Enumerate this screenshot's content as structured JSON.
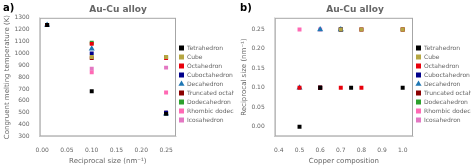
{
  "chart_data": [
    {
      "type": "scatter",
      "title": "Au-Cu alloy",
      "annotations": [
        "a)"
      ],
      "xlabel": "Reciprocal size (nm⁻¹)",
      "ylabel": "Congruent melting temperature (K)",
      "xlim": [
        -0.005,
        0.27
      ],
      "ylim": [
        300,
        1300
      ],
      "xticks": [
        {
          "value": 0.0,
          "label": "0.00"
        },
        0.05,
        {
          "value": 0.1,
          "label": "0.10"
        },
        0.15,
        {
          "value": 0.2,
          "label": "0.20"
        },
        0.25
      ],
      "yticks": [
        300,
        400,
        500,
        600,
        700,
        800,
        900,
        1000,
        1100,
        1200,
        1300
      ],
      "grid": false,
      "legend": "right",
      "series": [
        {
          "name": "Tetrahedron",
          "color": "#000000",
          "marker": "square",
          "x": [
            0.01,
            0.1,
            0.25
          ],
          "y": [
            1240,
            680,
            490
          ]
        },
        {
          "name": "Cube",
          "color": "#b5a642",
          "marker": "square",
          "x": [
            0.1,
            0.25
          ],
          "y": [
            970,
            970
          ]
        },
        {
          "name": "Octahedron",
          "color": "#e8000b",
          "marker": "square",
          "x": [
            0.01,
            0.1,
            0.25
          ],
          "y": [
            1240,
            1080,
            960
          ]
        },
        {
          "name": "Cuboctahedron",
          "color": "#00008B",
          "marker": "square",
          "x": [
            0.1,
            0.25
          ],
          "y": [
            1000,
            500
          ]
        },
        {
          "name": "Decahedron",
          "color": "#1f77b4",
          "marker": "triangle",
          "x": [
            0.01,
            0.1,
            0.25
          ],
          "y": [
            1240,
            1040,
            490
          ]
        },
        {
          "name": "Truncated octahedron",
          "color": "#8B0000",
          "marker": "square",
          "x": [
            0.1,
            0.25
          ],
          "y": [
            960,
            500
          ]
        },
        {
          "name": "Dodecahedron",
          "color": "#2ca02c",
          "marker": "square",
          "x": [
            0.01,
            0.1,
            0.25
          ],
          "y": [
            1240,
            1090,
            970
          ]
        },
        {
          "name": "Rhombic dodecahedron",
          "color": "#ff69b4",
          "marker": "square",
          "x": [
            0.1,
            0.25
          ],
          "y": [
            840,
            670
          ]
        },
        {
          "name": "Icosahedron",
          "color": "#e377c2",
          "marker": "square",
          "x": [
            0.01,
            0.1,
            0.25
          ],
          "y": [
            1240,
            870,
            880
          ]
        }
      ]
    },
    {
      "type": "scatter",
      "title": "Au-Cu alloy",
      "annotations": [
        "b)"
      ],
      "xlabel": "Copper composition",
      "ylabel": "Reciprocal size (nm⁻¹)",
      "xlim": [
        0.38,
        1.05
      ],
      "ylim": [
        -0.025,
        0.28
      ],
      "xticks": [
        0.4,
        0.5,
        0.6,
        0.7,
        0.8,
        0.9,
        {
          "value": 1.0,
          "label": "1.0"
        }
      ],
      "yticks": [
        {
          "value": 0.0,
          "label": "0.00"
        },
        0.05,
        {
          "value": 0.1,
          "label": "0.10"
        },
        0.15,
        {
          "value": 0.2,
          "label": "0.20"
        },
        0.25
      ],
      "grid": false,
      "legend": "right",
      "series": [
        {
          "name": "Tetrahedron",
          "color": "#000000",
          "marker": "square",
          "x": [
            0.5,
            0.6,
            0.75,
            1.0
          ],
          "y": [
            0.0,
            0.1,
            0.1,
            0.1
          ]
        },
        {
          "name": "Cube",
          "color": "#b5a642",
          "marker": "square",
          "x": [
            0.7,
            0.8,
            1.0
          ],
          "y": [
            0.25,
            0.25,
            0.25
          ]
        },
        {
          "name": "Octahedron",
          "color": "#e8000b",
          "marker": "square",
          "x": [
            0.5,
            0.6,
            0.7,
            0.8,
            1.0
          ],
          "y": [
            0.1,
            0.1,
            0.1,
            0.1,
            0.25
          ]
        },
        {
          "name": "Cuboctahedron",
          "color": "#00008B",
          "marker": "square",
          "x": [
            0.6,
            0.7
          ],
          "y": [
            0.1,
            0.25
          ]
        },
        {
          "name": "Decahedron",
          "color": "#1f77b4",
          "marker": "triangle",
          "x": [
            0.5,
            0.6,
            0.7
          ],
          "y": [
            0.1,
            0.25,
            0.25
          ]
        },
        {
          "name": "Truncated octahedron",
          "color": "#8B0000",
          "marker": "square",
          "x": [
            0.6,
            0.7,
            0.8
          ],
          "y": [
            0.1,
            0.25,
            0.25
          ]
        },
        {
          "name": "Dodecahedron",
          "color": "#2ca02c",
          "marker": "square",
          "x": [
            0.6,
            0.7,
            1.0
          ],
          "y": [
            0.1,
            0.25,
            0.25
          ]
        },
        {
          "name": "Rhombic dodecahedron",
          "color": "#ff69b4",
          "marker": "square",
          "x": [
            0.5,
            0.6
          ],
          "y": [
            0.25,
            0.1
          ]
        },
        {
          "name": "Icosahedron",
          "color": "#e377c2",
          "marker": "square",
          "x": [
            0.6,
            0.7,
            0.8,
            1.0
          ],
          "y": [
            0.25,
            0.25,
            0.25,
            0.25
          ]
        }
      ]
    }
  ]
}
